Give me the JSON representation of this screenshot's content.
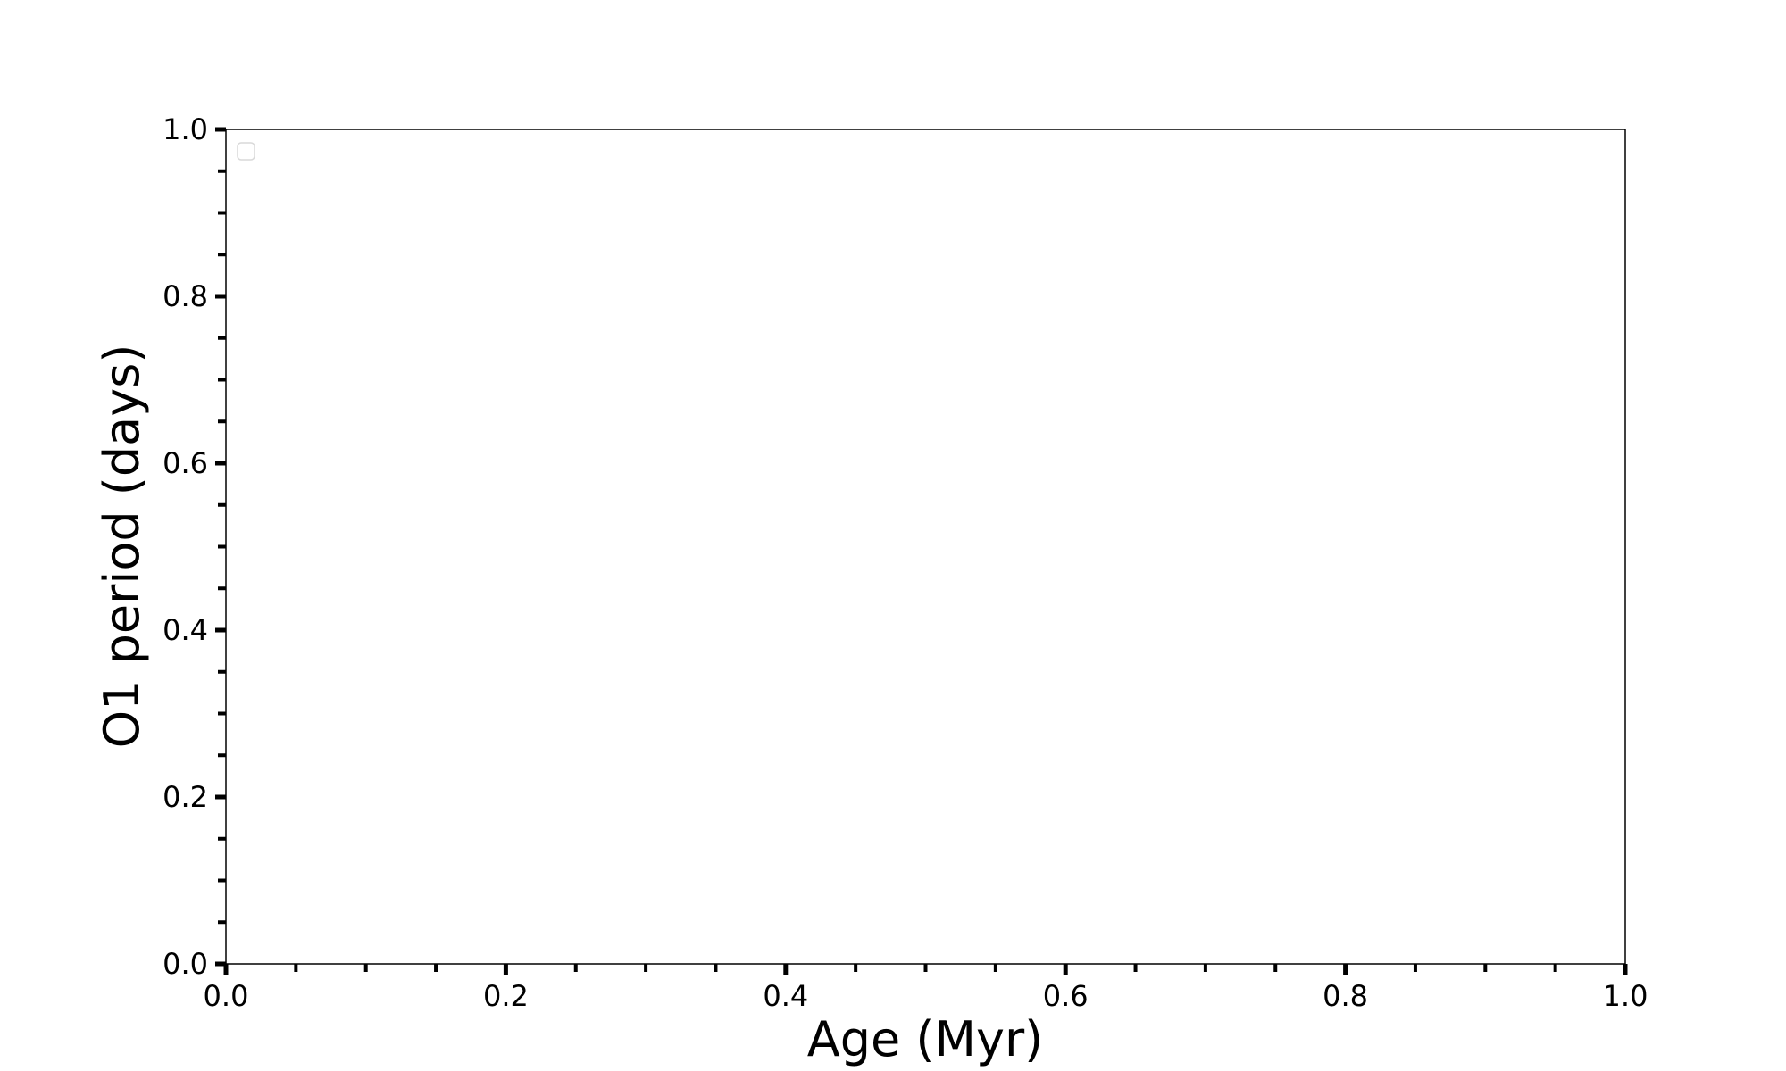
{
  "chart_data": {
    "type": "line",
    "title": "",
    "xlabel": "Age (Myr)",
    "ylabel": "O1 period (days)",
    "xlim": [
      0.0,
      1.0
    ],
    "ylim": [
      0.0,
      1.0
    ],
    "x_ticks": [
      "0.0",
      "0.2",
      "0.4",
      "0.6",
      "0.8",
      "1.0"
    ],
    "y_ticks": [
      "0.0",
      "0.2",
      "0.4",
      "0.6",
      "0.8",
      "1.0"
    ],
    "minor_tick_step": 0.05,
    "grid": false,
    "legend": {
      "placement": "upper-left",
      "entries": []
    },
    "series": []
  }
}
